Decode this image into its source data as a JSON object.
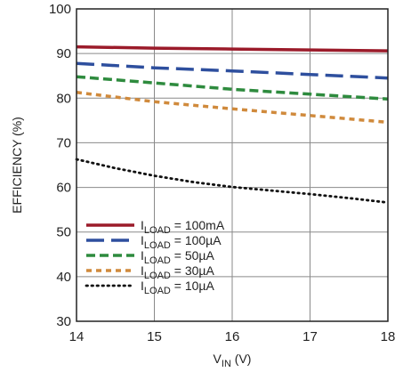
{
  "chart_data": {
    "type": "line",
    "xlabel": {
      "main": "V",
      "sub": "IN",
      "suffix": " (V)"
    },
    "ylabel": "EFFICIENCY (%)",
    "xlim": [
      14,
      18
    ],
    "ylim": [
      30,
      100
    ],
    "xticks": [
      "14",
      "15",
      "16",
      "17",
      "18"
    ],
    "yticks": [
      "30",
      "40",
      "50",
      "60",
      "70",
      "80",
      "90",
      "100"
    ],
    "grid": true,
    "legend_position": "lower-left",
    "series": [
      {
        "name": "100mA",
        "legend": {
          "main": "I",
          "sub": "LOAD",
          "rest": " = 100mA"
        },
        "color": "#9b1b2a",
        "style": "solid",
        "x": [
          14,
          15,
          16,
          17,
          18
        ],
        "y": [
          91.5,
          91.2,
          91.0,
          90.8,
          90.6
        ]
      },
      {
        "name": "100µA",
        "legend": {
          "main": "I",
          "sub": "LOAD",
          "rest": " = 100µA"
        },
        "color": "#2e4f9e",
        "style": "long-dash",
        "x": [
          14,
          15,
          16,
          17,
          18
        ],
        "y": [
          87.8,
          86.8,
          86.1,
          85.3,
          84.5
        ]
      },
      {
        "name": "50µA",
        "legend": {
          "main": "I",
          "sub": "LOAD",
          "rest": " = 50µA"
        },
        "color": "#2e8b3e",
        "style": "dash",
        "x": [
          14,
          15,
          16,
          17,
          18
        ],
        "y": [
          84.8,
          83.4,
          82.0,
          80.9,
          79.8
        ]
      },
      {
        "name": "30µA",
        "legend": {
          "main": "I",
          "sub": "LOAD",
          "rest": " = 30µA"
        },
        "color": "#d08a3c",
        "style": "short-dash",
        "x": [
          14,
          15,
          16,
          17,
          18
        ],
        "y": [
          81.3,
          79.2,
          77.6,
          76.1,
          74.6
        ]
      },
      {
        "name": "10µA",
        "legend": {
          "main": "I",
          "sub": "LOAD",
          "rest": " = 10µA"
        },
        "color": "#111111",
        "style": "dot",
        "x": [
          14,
          14.5,
          15,
          15.5,
          16,
          16.5,
          17,
          17.5,
          18
        ],
        "y": [
          66.3,
          64.3,
          62.6,
          61.2,
          60.1,
          59.3,
          58.5,
          57.6,
          56.6
        ]
      }
    ]
  }
}
